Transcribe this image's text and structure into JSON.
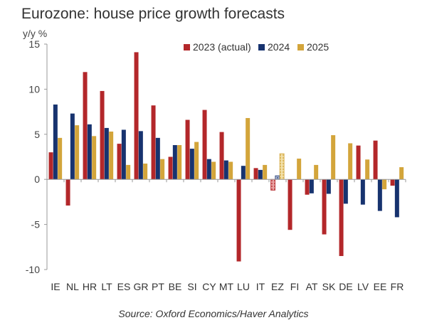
{
  "chart_data": {
    "type": "bar",
    "title": "Eurozone: house price growth forecasts",
    "ylabel": "y/y %",
    "xlabel": "",
    "ylim": [
      -10,
      15
    ],
    "yticks": [
      15,
      10,
      5,
      0,
      -5,
      -10
    ],
    "grid": false,
    "legend_position": "top-right",
    "source": "Source: Oxford Economics/Haver Analytics",
    "categories": [
      "IE",
      "NL",
      "HR",
      "LT",
      "ES",
      "GR",
      "PT",
      "BE",
      "SI",
      "CY",
      "MT",
      "LU",
      "IT",
      "EZ",
      "FI",
      "AT",
      "SK",
      "DE",
      "LV",
      "EE",
      "FR"
    ],
    "highlighted_category": "EZ",
    "series": [
      {
        "name": "2023 (actual)",
        "color": "#b3272a",
        "values": [
          3.0,
          -2.9,
          11.9,
          9.8,
          3.95,
          14.1,
          8.2,
          2.5,
          6.6,
          7.7,
          5.25,
          -9.1,
          1.25,
          -1.2,
          -5.6,
          -1.7,
          -6.1,
          -8.5,
          3.75,
          4.3,
          -0.7
        ]
      },
      {
        "name": "2024",
        "color": "#17336f",
        "values": [
          8.3,
          7.3,
          6.1,
          5.7,
          5.5,
          5.35,
          4.6,
          3.8,
          3.4,
          2.25,
          2.1,
          1.5,
          1.05,
          0.4,
          0.0,
          -1.55,
          -1.6,
          -2.7,
          -2.8,
          -3.5,
          -4.2
        ]
      },
      {
        "name": "2025",
        "color": "#d3a53b",
        "values": [
          4.6,
          6.0,
          4.8,
          5.3,
          1.6,
          1.75,
          2.25,
          3.8,
          4.15,
          1.95,
          1.95,
          6.8,
          1.6,
          2.85,
          2.3,
          1.6,
          4.9,
          4.0,
          2.2,
          -1.1,
          1.35
        ]
      }
    ]
  }
}
